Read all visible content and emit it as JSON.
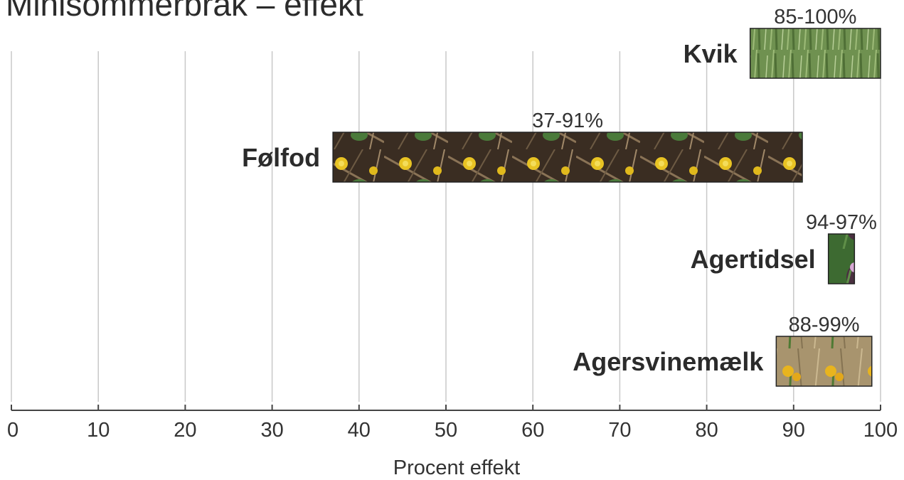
{
  "chart_data": {
    "type": "bar",
    "title": "Minisommerbrak – effekt",
    "xlabel": "Procent effekt",
    "ylabel": "",
    "xlim": [
      0,
      100
    ],
    "x_ticks": [
      0,
      10,
      20,
      30,
      40,
      50,
      60,
      70,
      80,
      90,
      100
    ],
    "grid": true,
    "orientation": "horizontal-range",
    "bars": [
      {
        "category": "Kvik",
        "min": 85,
        "max": 100,
        "label": "85-100%",
        "texture": "grass",
        "color": "#6b8f4e"
      },
      {
        "category": "Følfod",
        "min": 37,
        "max": 91,
        "label": "37-91%",
        "texture": "coltsfoot",
        "color": "#4a3a2a"
      },
      {
        "category": "Agertidsel",
        "min": 94,
        "max": 97,
        "label": "94-97%",
        "texture": "thistle",
        "color": "#3f6b33"
      },
      {
        "category": "Agersvinemælk",
        "min": 88,
        "max": 99,
        "label": "88-99%",
        "texture": "sowthistle",
        "color": "#a89470"
      }
    ]
  }
}
